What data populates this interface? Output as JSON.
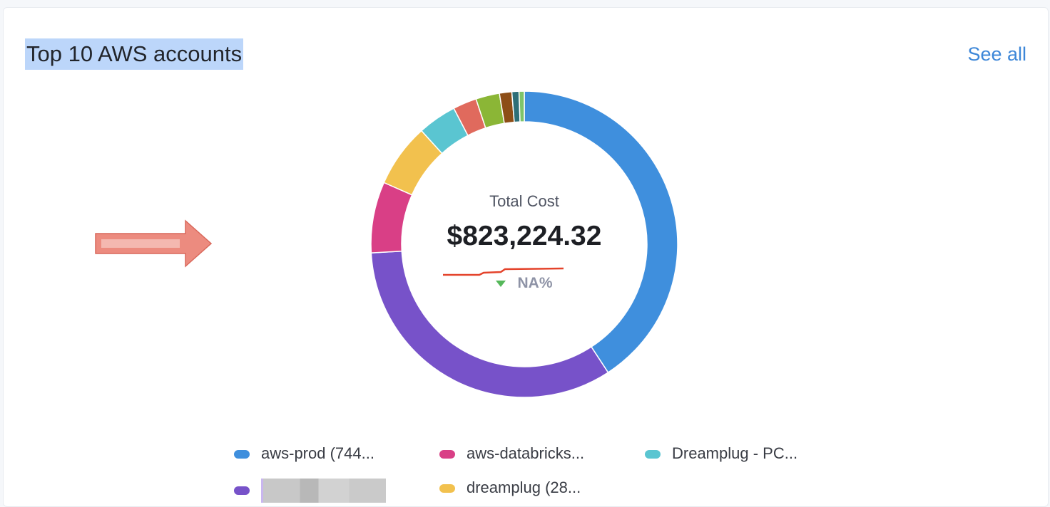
{
  "card": {
    "title": "Top 10 AWS accounts",
    "see_all": "See all"
  },
  "center": {
    "label": "Total Cost",
    "value": "$823,224.32",
    "change": "NA%",
    "change_direction": "down",
    "change_color": "#55b85a"
  },
  "chart_data": {
    "type": "pie",
    "donut": true,
    "unit": "percent share (estimated)",
    "slices": [
      {
        "label": "aws-prod (744...",
        "value": 40.8,
        "color": "#3f8fdd"
      },
      {
        "label": "",
        "value": 33.3,
        "color": "#7752c9"
      },
      {
        "label": "aws-databricks...",
        "value": 7.5,
        "color": "#d93f86"
      },
      {
        "label": "dreamplug (28...",
        "value": 6.7,
        "color": "#f2c14e"
      },
      {
        "label": "Dreamplug - PC...",
        "value": 4.1,
        "color": "#5ac5d1"
      },
      {
        "label": "",
        "value": 2.5,
        "color": "#e06a5d"
      },
      {
        "label": "",
        "value": 2.5,
        "color": "#8bb636"
      },
      {
        "label": "",
        "value": 1.3,
        "color": "#8d4e17"
      },
      {
        "label": "",
        "value": 0.75,
        "color": "#2e6f78"
      },
      {
        "label": "",
        "value": 0.55,
        "color": "#7ec46a"
      }
    ]
  },
  "legend": [
    {
      "label": "aws-prod (744...",
      "color": "#3f8fdd",
      "redacted": false
    },
    {
      "label": "aws-databricks...",
      "color": "#d93f86",
      "redacted": false
    },
    {
      "label": "Dreamplug - PC...",
      "color": "#5ac5d1",
      "redacted": false
    },
    {
      "label": "",
      "color": "#7752c9",
      "redacted": true
    },
    {
      "label": "dreamplug (28...",
      "color": "#f2c14e",
      "redacted": false
    }
  ]
}
